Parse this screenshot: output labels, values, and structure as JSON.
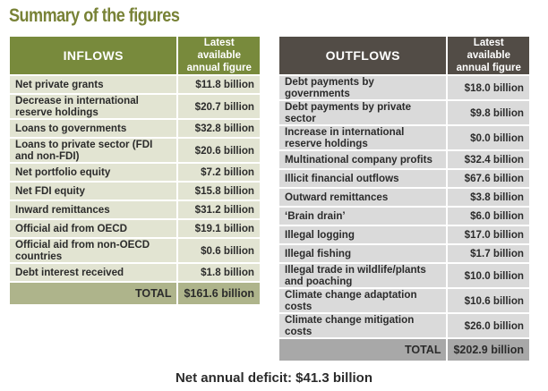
{
  "title": "Summary of the figures",
  "inflows": {
    "header": "INFLOWS",
    "figure_header_line1": "Latest available",
    "figure_header_line2": "annual figure",
    "rows": [
      {
        "label": "Net private grants",
        "value": "$11.8 billion"
      },
      {
        "label": "Decrease in international reserve holdings",
        "value": "$20.7 billion"
      },
      {
        "label": "Loans to governments",
        "value": "$32.8 billion"
      },
      {
        "label": "Loans to private sector (FDI and non-FDI)",
        "value": "$20.6 billion"
      },
      {
        "label": "Net portfolio equity",
        "value": "$7.2 billion"
      },
      {
        "label": "Net FDI equity",
        "value": "$15.8 billion"
      },
      {
        "label": "Inward remittances",
        "value": "$31.2 billion"
      },
      {
        "label": "Official aid from OECD",
        "value": "$19.1 billion"
      },
      {
        "label": "Official aid from non-OECD countries",
        "value": "$0.6 billion"
      },
      {
        "label": "Debt interest received",
        "value": "$1.8 billion"
      }
    ],
    "total_label": "TOTAL",
    "total_value": "$161.6 billion"
  },
  "outflows": {
    "header": "OUTFLOWS",
    "figure_header_line1": "Latest available",
    "figure_header_line2": "annual figure",
    "rows": [
      {
        "label": "Debt payments by governments",
        "value": "$18.0 billion"
      },
      {
        "label": "Debt payments by private sector",
        "value": "$9.8 billion"
      },
      {
        "label": "Increase in international reserve holdings",
        "value": "$0.0 billion"
      },
      {
        "label": "Multinational company profits",
        "value": "$32.4 billion"
      },
      {
        "label": "Illicit financial outflows",
        "value": "$67.6 billion"
      },
      {
        "label": "Outward remittances",
        "value": "$3.8 billion"
      },
      {
        "label": "‘Brain drain’",
        "value": "$6.0 billion"
      },
      {
        "label": "Illegal logging",
        "value": "$17.0 billion"
      },
      {
        "label": "Illegal fishing",
        "value": "$1.7 billion"
      },
      {
        "label": "Illegal trade in wildlife/plants and poaching",
        "value": "$10.0 billion"
      },
      {
        "label": "Climate change adaptation costs",
        "value": "$10.6 billion"
      },
      {
        "label": "Climate change mitigation costs",
        "value": "$26.0 billion"
      }
    ],
    "total_label": "TOTAL",
    "total_value": "$202.9 billion"
  },
  "deficit": "Net annual deficit: $41.3 billion",
  "colors": {
    "title": "#788236",
    "inflows_header": "#788a3c",
    "inflows_row": "#e2e4d2",
    "inflows_total": "#aeb48b",
    "outflows_header": "#524c46",
    "outflows_row": "#dadada",
    "outflows_total": "#a8a8a8"
  }
}
